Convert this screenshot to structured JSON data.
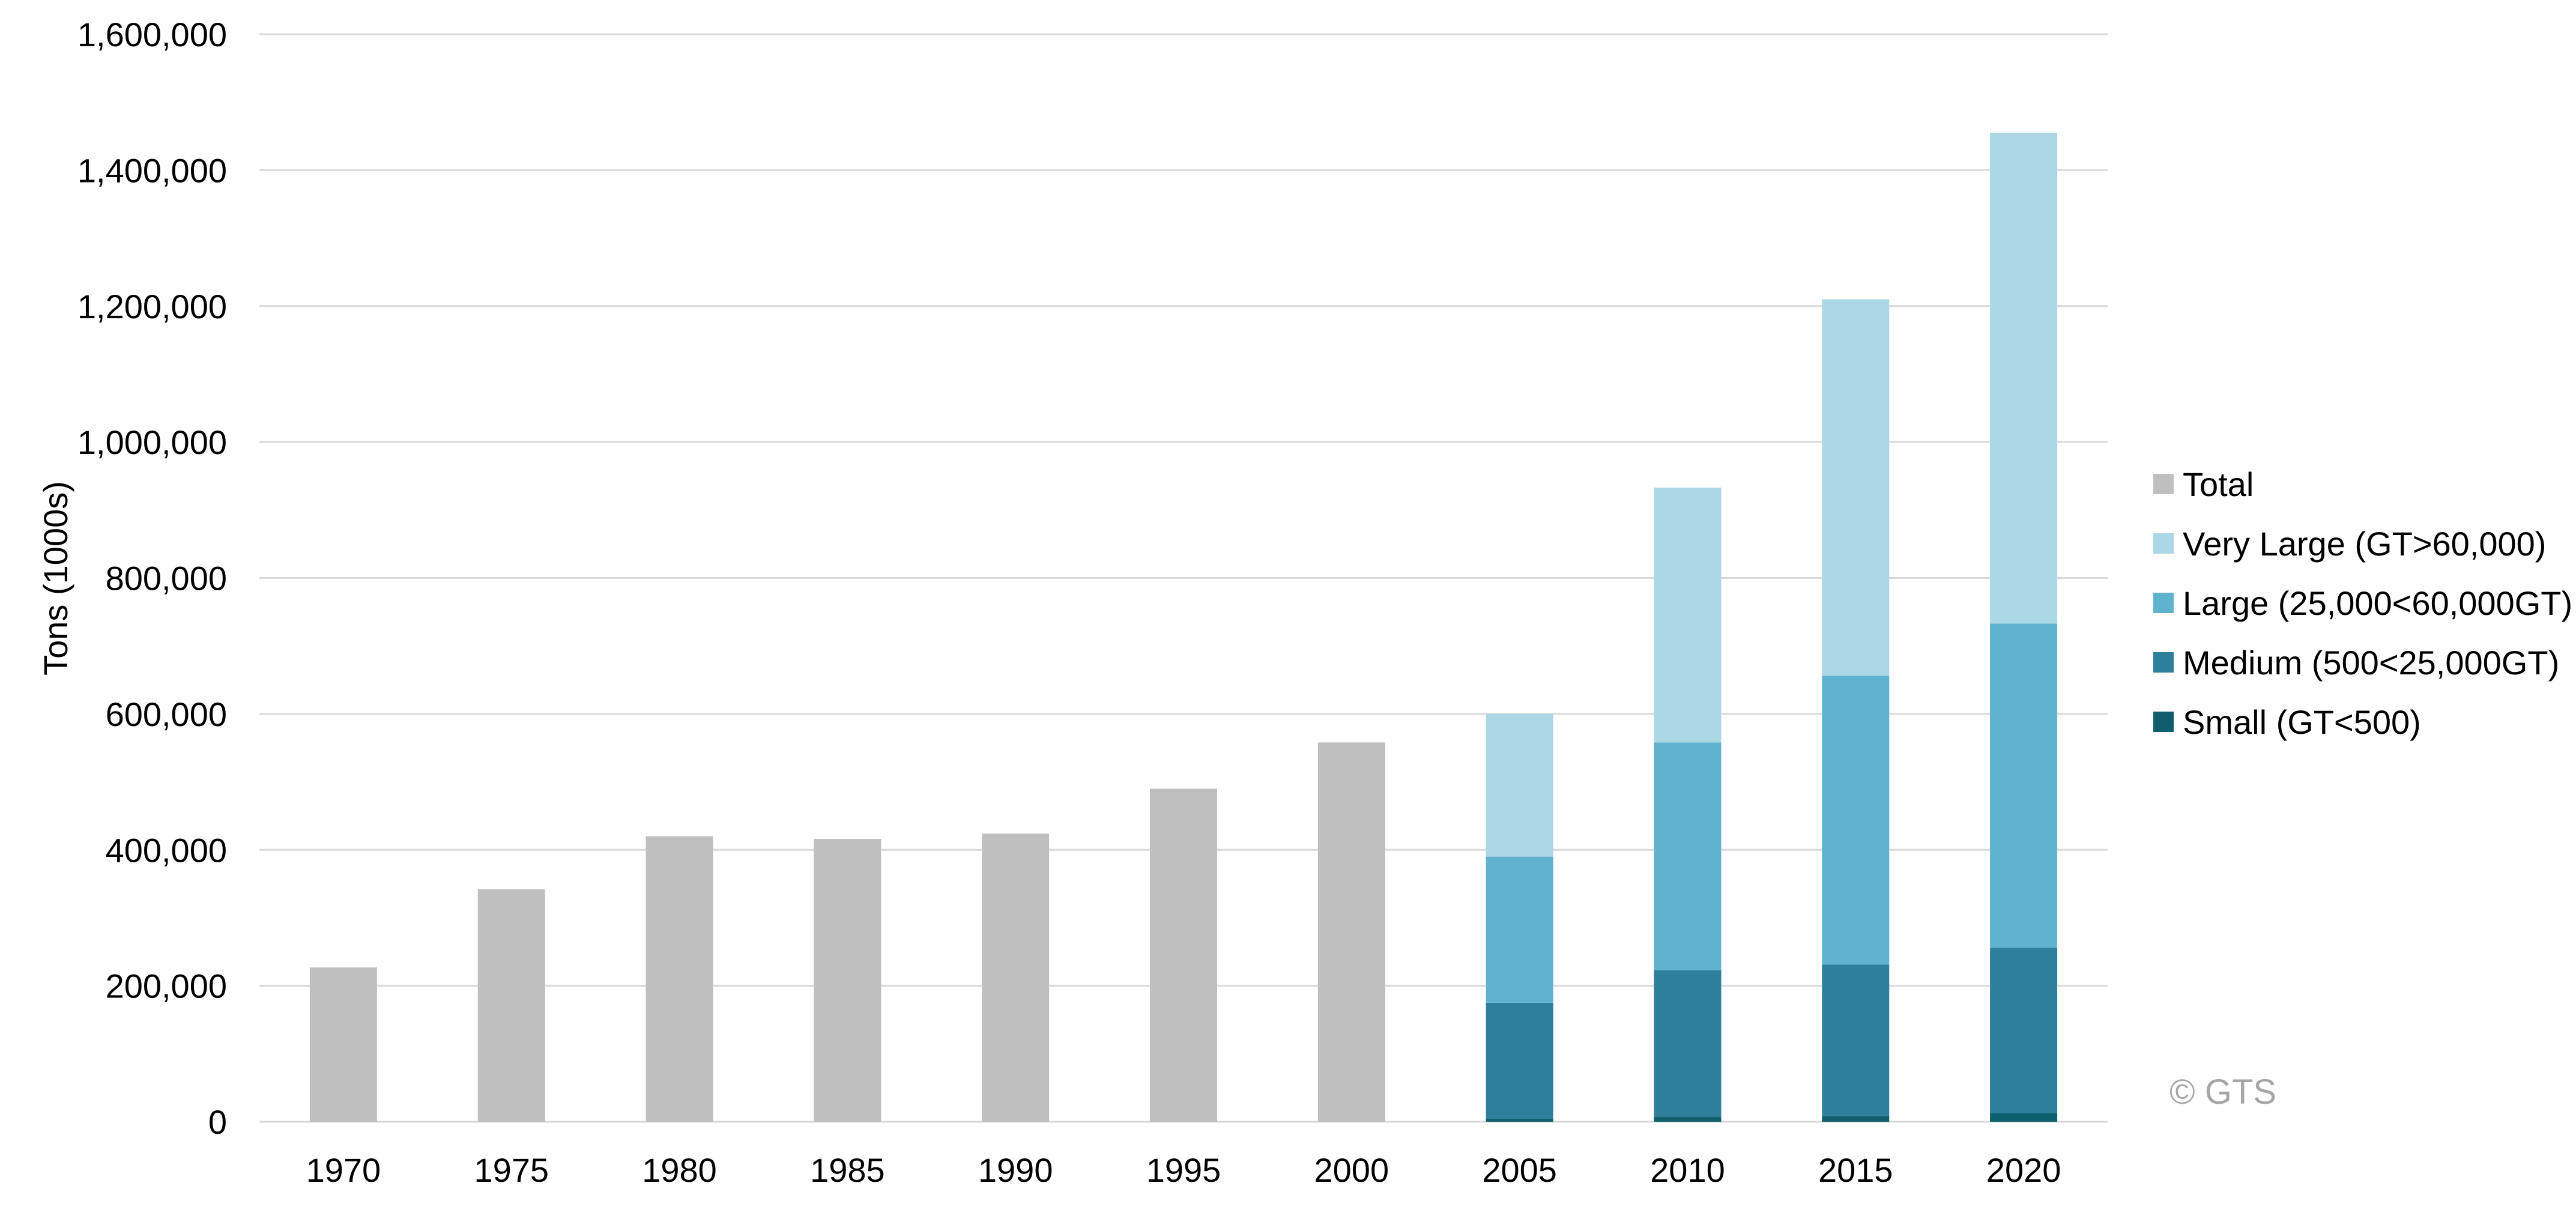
{
  "chart_data": {
    "type": "bar",
    "stacked": true,
    "title": "",
    "xlabel": "",
    "ylabel": "Tons (1000s)",
    "ylim": [
      0,
      1600000
    ],
    "y_ticks": [
      0,
      200000,
      400000,
      600000,
      800000,
      1000000,
      1200000,
      1400000,
      1600000
    ],
    "y_tick_labels": [
      "0",
      "200,000",
      "400,000",
      "600,000",
      "800,000",
      "1,000,000",
      "1,200,000",
      "1,400,000",
      "1,600,000"
    ],
    "grid": true,
    "legend_position": "right",
    "categories": [
      "1970",
      "1975",
      "1980",
      "1985",
      "1990",
      "1995",
      "2000",
      "2005",
      "2010",
      "2015",
      "2020"
    ],
    "series": [
      {
        "name": "Total",
        "color": "#bfbfbf",
        "values": [
          227000,
          342000,
          420000,
          416000,
          424000,
          490000,
          558000,
          null,
          null,
          null,
          null
        ]
      },
      {
        "name": "Small (GT<500)",
        "color": "#0e5f6b",
        "values": [
          null,
          null,
          null,
          null,
          null,
          null,
          null,
          4000,
          7000,
          8000,
          13000
        ]
      },
      {
        "name": "Medium (500<25,000GT)",
        "color": "#2d7f9b",
        "values": [
          null,
          null,
          null,
          null,
          null,
          null,
          null,
          171000,
          216000,
          223000,
          243000
        ]
      },
      {
        "name": "Large (25,000<60,000GT)",
        "color": "#5fb3cf",
        "values": [
          null,
          null,
          null,
          null,
          null,
          null,
          null,
          215000,
          335000,
          425000,
          477000
        ]
      },
      {
        "name": "Very Large (GT>60,000)",
        "color": "#abd8e6",
        "values": [
          null,
          null,
          null,
          null,
          null,
          null,
          null,
          210000,
          375000,
          554000,
          722000
        ]
      }
    ],
    "legend_order": [
      "Total",
      "Very Large (GT>60,000)",
      "Large (25,000<60,000GT)",
      "Medium (500<25,000GT)",
      "Small (GT<500)"
    ],
    "annotation": "© GTS"
  }
}
